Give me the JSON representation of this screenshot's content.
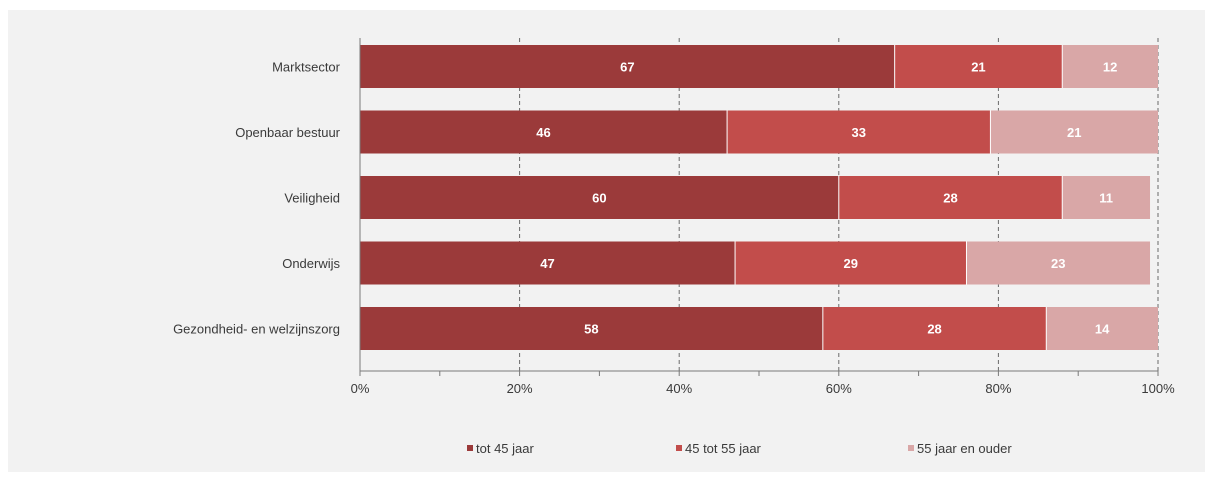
{
  "chart_data": {
    "type": "bar",
    "orientation": "horizontal",
    "stacked": "percent",
    "title": "",
    "xlabel": "",
    "ylabel": "",
    "categories": [
      "Marktsector",
      "Openbaar bestuur",
      "Veiligheid",
      "Onderwijs",
      "Gezondheid- en welzijnszorg"
    ],
    "series": [
      {
        "name": "tot 45 jaar",
        "values": [
          67,
          46,
          60,
          47,
          58
        ],
        "color": "#9b3a3a"
      },
      {
        "name": "45 tot 55 jaar",
        "values": [
          21,
          33,
          28,
          29,
          28
        ],
        "color": "#c24d4b"
      },
      {
        "name": "55 jaar en ouder",
        "values": [
          12,
          21,
          11,
          23,
          14
        ],
        "color": "#d9a7a7"
      }
    ],
    "xlim": [
      0,
      100
    ],
    "xticks": [
      "0%",
      "20%",
      "40%",
      "60%",
      "80%",
      "100%"
    ],
    "grid": "vertical dashed",
    "legend": "bottom"
  }
}
